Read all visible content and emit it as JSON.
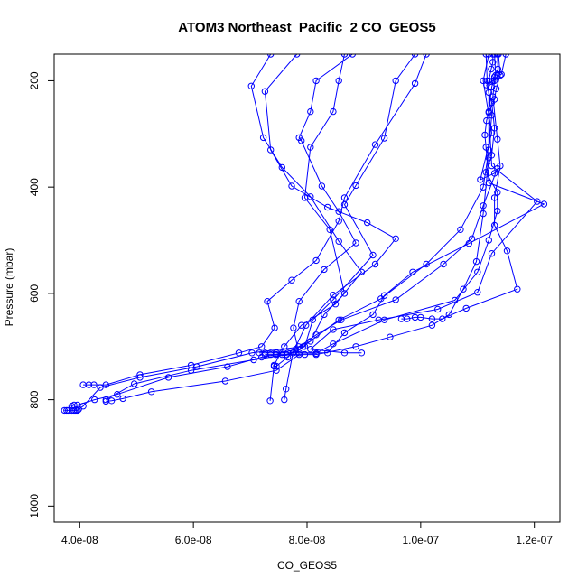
{
  "chart_data": {
    "type": "line",
    "title": "ATOM3 Northeast_Pacific_2 CO_GEOS5",
    "xlabel": "CO_GEOS5",
    "ylabel": "Pressure (mbar)",
    "xlim": [
      3.55e-08,
      1.245e-07
    ],
    "ylim": [
      1030,
      150
    ],
    "y_reversed": true,
    "x_ticks": [
      4e-08,
      6e-08,
      8e-08,
      1e-07,
      1.2e-07
    ],
    "x_tick_labels": [
      "4.0e-08",
      "6.0e-08",
      "8.0e-08",
      "1.0e-07",
      "1.2e-07"
    ],
    "y_ticks": [
      200,
      400,
      600,
      800,
      1000
    ],
    "y_tick_labels": [
      "200",
      "400",
      "600",
      "800",
      "1000"
    ],
    "grid": false,
    "series_color": "#0000ff",
    "marker": "open-circle",
    "series": [
      {
        "points": [
          [
            7.36e-08,
            150
          ],
          [
            7.02e-08,
            210
          ],
          [
            7.23e-08,
            307
          ],
          [
            7.56e-08,
            363
          ],
          [
            8.06e-08,
            418
          ],
          [
            8.56e-08,
            502
          ],
          [
            8.96e-08,
            560
          ],
          [
            8.5e-08,
            620
          ],
          [
            7.9e-08,
            660
          ],
          [
            7.6e-08,
            700
          ],
          [
            7.42e-08,
            735
          ],
          [
            7.35e-08,
            802
          ]
        ]
      },
      {
        "points": [
          [
            7.82e-08,
            150
          ],
          [
            7.26e-08,
            220
          ],
          [
            7.36e-08,
            330
          ],
          [
            7.73e-08,
            398
          ],
          [
            8.36e-08,
            438
          ],
          [
            9.06e-08,
            467
          ],
          [
            9.56e-08,
            497
          ],
          [
            9.2e-08,
            545
          ],
          [
            8.46e-08,
            603
          ],
          [
            7.98e-08,
            660
          ],
          [
            7.75e-08,
            712
          ],
          [
            7.63e-08,
            780
          ],
          [
            7.6e-08,
            800
          ]
        ]
      },
      {
        "points": [
          [
            8.8e-08,
            150
          ],
          [
            8.16e-08,
            200
          ],
          [
            8.06e-08,
            258
          ],
          [
            7.86e-08,
            307
          ],
          [
            7.9e-08,
            313
          ],
          [
            8.26e-08,
            398
          ],
          [
            8.56e-08,
            446
          ],
          [
            8.86e-08,
            505
          ],
          [
            8.3e-08,
            555
          ],
          [
            7.86e-08,
            615
          ],
          [
            7.76e-08,
            665
          ],
          [
            7.86e-08,
            715
          ],
          [
            7.46e-08,
            745
          ],
          [
            6.56e-08,
            765
          ],
          [
            5.26e-08,
            785
          ],
          [
            4.76e-08,
            798
          ],
          [
            4.56e-08,
            802
          ],
          [
            4.46e-08,
            803
          ]
        ]
      },
      {
        "points": [
          [
            9.9e-08,
            150
          ],
          [
            9.56e-08,
            200
          ],
          [
            9.36e-08,
            308
          ],
          [
            8.86e-08,
            397
          ],
          [
            8.66e-08,
            433
          ],
          [
            9.16e-08,
            528
          ],
          [
            8.46e-08,
            612
          ],
          [
            8.1e-08,
            650
          ],
          [
            7.96e-08,
            700
          ],
          [
            7.64e-08,
            715
          ],
          [
            7.06e-08,
            725
          ],
          [
            5.96e-08,
            745
          ],
          [
            4.96e-08,
            770
          ],
          [
            4.46e-08,
            800
          ]
        ]
      },
      {
        "points": [
          [
            1.01e-07,
            150
          ],
          [
            9.9e-08,
            205
          ],
          [
            9.2e-08,
            320
          ],
          [
            8.66e-08,
            420
          ],
          [
            8.56e-08,
            464
          ],
          [
            8.16e-08,
            538
          ],
          [
            7.73e-08,
            575
          ],
          [
            7.3e-08,
            615
          ],
          [
            7.43e-08,
            665
          ],
          [
            7.2e-08,
            700
          ],
          [
            6.8e-08,
            712
          ],
          [
            5.96e-08,
            735
          ],
          [
            5.06e-08,
            753
          ],
          [
            4.46e-08,
            772
          ],
          [
            4.06e-08,
            772
          ],
          [
            4.16e-08,
            772
          ],
          [
            4.25e-08,
            772
          ]
        ]
      },
      {
        "points": [
          [
            1.115e-07,
            150
          ],
          [
            1.117e-07,
            200
          ],
          [
            1.125e-07,
            265
          ],
          [
            1.12e-07,
            330
          ],
          [
            1.11e-07,
            400
          ],
          [
            1.07e-07,
            480
          ],
          [
            1.01e-07,
            545
          ],
          [
            9.3e-08,
            610
          ],
          [
            8.56e-08,
            650
          ],
          [
            7.93e-08,
            700
          ],
          [
            7.03e-08,
            712
          ],
          [
            6.06e-08,
            738
          ],
          [
            5.06e-08,
            758
          ],
          [
            4.36e-08,
            777
          ],
          [
            4.06e-08,
            812
          ],
          [
            3.98e-08,
            818
          ],
          [
            3.96e-08,
            820
          ],
          [
            3.93e-08,
            820
          ],
          [
            3.9e-08,
            820
          ],
          [
            3.86e-08,
            820
          ],
          [
            3.8e-08,
            820
          ],
          [
            3.77e-08,
            820
          ],
          [
            3.73e-08,
            820
          ]
        ]
      },
      {
        "points": [
          [
            1.12e-07,
            150
          ],
          [
            1.11e-07,
            200
          ],
          [
            1.125e-07,
            298
          ],
          [
            1.105e-07,
            386
          ],
          [
            1.13e-07,
            374
          ],
          [
            1.135e-07,
            365
          ],
          [
            1.11e-07,
            435
          ],
          [
            1.09e-07,
            497
          ],
          [
            1.04e-07,
            545
          ],
          [
            9.56e-08,
            612
          ],
          [
            8.6e-08,
            650
          ],
          [
            8.16e-08,
            678
          ],
          [
            7.8e-08,
            705
          ],
          [
            7.45e-08,
            715
          ],
          [
            7.2e-08,
            720
          ],
          [
            6.6e-08,
            738
          ],
          [
            5.56e-08,
            758
          ],
          [
            4.66e-08,
            790
          ],
          [
            4.26e-08,
            800
          ],
          [
            3.96e-08,
            810
          ],
          [
            3.9e-08,
            810
          ],
          [
            3.86e-08,
            812
          ]
        ]
      },
      {
        "points": [
          [
            1.13e-07,
            150
          ],
          [
            1.132e-07,
            190
          ],
          [
            1.127e-07,
            200
          ],
          [
            1.116e-07,
            208
          ],
          [
            1.12e-07,
            222
          ],
          [
            1.125e-07,
            241
          ],
          [
            1.13e-07,
            289
          ],
          [
            1.125e-07,
            340
          ],
          [
            1.115e-07,
            372
          ],
          [
            1.135e-07,
            410
          ],
          [
            1.135e-07,
            445
          ],
          [
            1.12e-07,
            500
          ],
          [
            1.1e-07,
            560
          ],
          [
            1.06e-07,
            613
          ],
          [
            9.36e-08,
            650
          ],
          [
            8.46e-08,
            695
          ],
          [
            8.16e-08,
            713
          ],
          [
            7.76e-08,
            712
          ],
          [
            7.66e-08,
            712
          ],
          [
            7.56e-08,
            712
          ],
          [
            7.46e-08,
            712
          ],
          [
            7.36e-08,
            712
          ],
          [
            7.26e-08,
            712
          ],
          [
            7.16e-08,
            712
          ]
        ]
      },
      {
        "points": [
          [
            1.135e-07,
            150
          ],
          [
            1.136e-07,
            178
          ],
          [
            1.13e-07,
            193
          ],
          [
            1.125e-07,
            212
          ],
          [
            1.12e-07,
            258
          ],
          [
            1.116e-07,
            275
          ],
          [
            1.113e-07,
            302
          ],
          [
            1.115e-07,
            325
          ],
          [
            1.12e-07,
            392
          ],
          [
            1.217e-07,
            432
          ],
          [
            1.085e-07,
            506
          ],
          [
            9.86e-08,
            560
          ],
          [
            9.36e-08,
            604
          ],
          [
            9.16e-08,
            640
          ],
          [
            8.66e-08,
            674
          ],
          [
            8.36e-08,
            712
          ],
          [
            7.86e-08,
            712
          ]
        ]
      },
      {
        "points": [
          [
            1.137e-07,
            150
          ],
          [
            1.14e-07,
            190
          ],
          [
            1.133e-07,
            215
          ],
          [
            1.13e-07,
            235
          ],
          [
            1.12e-07,
            260
          ],
          [
            1.125e-07,
            360
          ],
          [
            1.205e-07,
            427
          ],
          [
            1.125e-07,
            525
          ],
          [
            1.1e-07,
            598
          ],
          [
            1.03e-07,
            630
          ],
          [
            9.26e-08,
            650
          ],
          [
            8.46e-08,
            668
          ],
          [
            8.06e-08,
            705
          ],
          [
            8.66e-08,
            712
          ],
          [
            8.96e-08,
            712
          ]
        ]
      },
      {
        "points": [
          [
            1.15e-07,
            150
          ],
          [
            1.142e-07,
            188
          ],
          [
            1.135e-07,
            190
          ],
          [
            1.13e-07,
            200
          ],
          [
            1.127e-07,
            230
          ],
          [
            1.135e-07,
            310
          ],
          [
            1.14e-07,
            360
          ],
          [
            1.13e-07,
            420
          ],
          [
            1.13e-07,
            472
          ],
          [
            1.152e-07,
            520
          ],
          [
            1.17e-07,
            592
          ],
          [
            1.08e-07,
            628
          ],
          [
            1.038e-07,
            648
          ],
          [
            1.02e-07,
            648
          ],
          [
            1e-07,
            645
          ],
          [
            9.9e-08,
            645
          ],
          [
            9.76e-08,
            648
          ],
          [
            9.66e-08,
            648
          ]
        ]
      },
      {
        "points": [
          [
            1.127e-07,
            150
          ],
          [
            1.127e-07,
            165
          ],
          [
            1.124e-07,
            178
          ],
          [
            1.12e-07,
            200
          ],
          [
            1.12e-07,
            345
          ],
          [
            1.11e-07,
            450
          ],
          [
            1.098e-07,
            540
          ],
          [
            1.075e-07,
            592
          ],
          [
            1.05e-07,
            640
          ],
          [
            1.02e-07,
            660
          ],
          [
            9.46e-08,
            682
          ],
          [
            8.86e-08,
            700
          ],
          [
            8.16e-08,
            715
          ],
          [
            7.96e-08,
            715
          ],
          [
            7.56e-08,
            715
          ],
          [
            7.46e-08,
            715
          ],
          [
            7.36e-08,
            715
          ],
          [
            7.26e-08,
            715
          ]
        ]
      },
      {
        "points": [
          [
            8.66e-08,
            150
          ],
          [
            8.56e-08,
            200
          ],
          [
            8.46e-08,
            258
          ],
          [
            8.06e-08,
            325
          ],
          [
            7.96e-08,
            420
          ],
          [
            8.4e-08,
            480
          ],
          [
            8.66e-08,
            600
          ],
          [
            8.3e-08,
            640
          ],
          [
            8.06e-08,
            690
          ],
          [
            7.85e-08,
            700
          ],
          [
            7.66e-08,
            720
          ],
          [
            7.46e-08,
            737
          ],
          [
            7.42e-08,
            737
          ]
        ]
      }
    ]
  }
}
